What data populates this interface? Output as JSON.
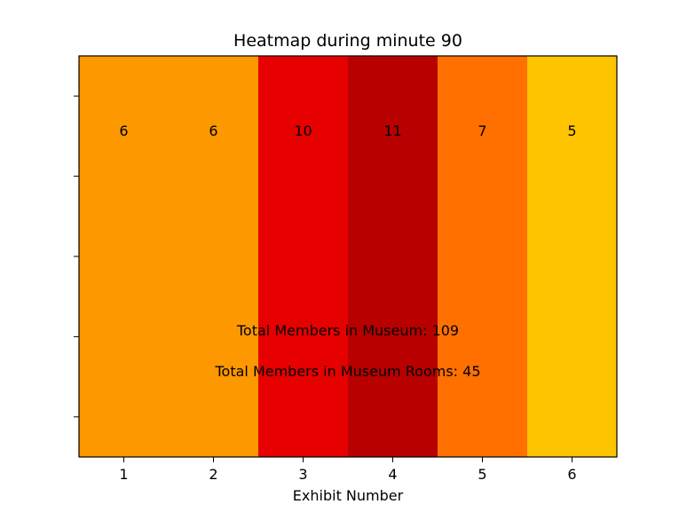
{
  "chart_data": {
    "type": "heatmap",
    "title": "Heatmap during minute 90",
    "xlabel": "Exhibit Number",
    "ylabel": "",
    "categories": [
      "1",
      "2",
      "3",
      "4",
      "5",
      "6"
    ],
    "values": [
      6,
      6,
      10,
      11,
      7,
      5
    ],
    "colors": [
      "#fd9800",
      "#fd9800",
      "#e60000",
      "#b80000",
      "#ff7000",
      "#ffc400"
    ],
    "y_ticks_shown": 5,
    "y_tick_labels": [],
    "grid": false,
    "annotations": [
      "Total Members in Museum: 109",
      "Total Members in Museum Rooms: 45"
    ]
  }
}
